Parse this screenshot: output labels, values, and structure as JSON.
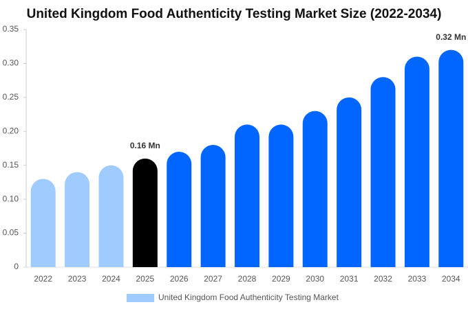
{
  "chart_data": {
    "type": "bar",
    "title": "United Kingdom Food Authenticity Testing Market  Size (2022-2034)",
    "categories": [
      "2022",
      "2023",
      "2024",
      "2025",
      "2026",
      "2027",
      "2028",
      "2029",
      "2030",
      "2031",
      "2032",
      "2033",
      "2034"
    ],
    "series": [
      {
        "name": "United Kingdom Food Authenticity Testing Market",
        "color": "#a0cbff",
        "values": [
          0.13,
          0.14,
          0.15,
          0.16,
          0.17,
          0.18,
          0.21,
          0.21,
          0.23,
          0.25,
          0.28,
          0.31,
          0.32
        ],
        "colors": [
          "#a0cbff",
          "#a0cbff",
          "#a0cbff",
          "#000000",
          "#0066ff",
          "#0066ff",
          "#0066ff",
          "#0066ff",
          "#0066ff",
          "#0066ff",
          "#0066ff",
          "#0066ff",
          "#0066ff"
        ],
        "value_labels": [
          null,
          null,
          null,
          "0.16 Mn",
          null,
          null,
          null,
          null,
          null,
          null,
          null,
          null,
          "0.32 Mn"
        ]
      }
    ],
    "ylim": [
      0,
      0.35
    ],
    "yticks": [
      0,
      0.05,
      {
        "value": 0.1,
        "label": "0.10"
      },
      0.15,
      {
        "value": 0.2,
        "label": "0.20"
      },
      0.25,
      {
        "value": 0.3,
        "label": "0.30"
      },
      0.35
    ],
    "grid": false,
    "legend": "bottom"
  }
}
